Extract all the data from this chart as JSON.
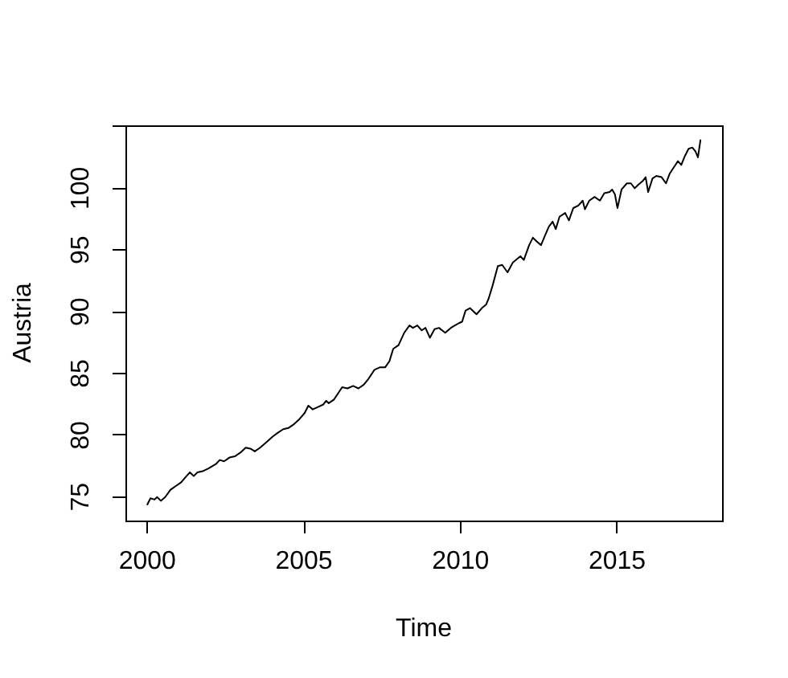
{
  "chart_data": {
    "type": "line",
    "xlabel": "Time",
    "ylabel": "Austria",
    "color": "#000000",
    "x": [
      2000.0,
      2000.1,
      2000.23,
      2000.31,
      2000.43,
      2000.57,
      2000.74,
      2000.91,
      2001.08,
      2001.25,
      2001.36,
      2001.48,
      2001.6,
      2001.77,
      2001.94,
      2002.2,
      2002.31,
      2002.45,
      2002.62,
      2002.8,
      2002.97,
      2003.14,
      2003.31,
      2003.43,
      2003.6,
      2003.83,
      2004.0,
      2004.16,
      2004.34,
      2004.51,
      2004.68,
      2004.85,
      2005.02,
      2005.14,
      2005.28,
      2005.45,
      2005.62,
      2005.71,
      2005.79,
      2005.96,
      2006.22,
      2006.39,
      2006.57,
      2006.74,
      2006.91,
      2007.04,
      2007.25,
      2007.42,
      2007.59,
      2007.73,
      2007.85,
      2008.02,
      2008.2,
      2008.37,
      2008.48,
      2008.62,
      2008.76,
      2008.88,
      2009.02,
      2009.17,
      2009.31,
      2009.51,
      2009.69,
      2009.82,
      2009.96,
      2010.05,
      2010.16,
      2010.3,
      2010.51,
      2010.68,
      2010.82,
      2010.9,
      2011.02,
      2011.19,
      2011.33,
      2011.5,
      2011.67,
      2011.91,
      2012.02,
      2012.19,
      2012.31,
      2012.43,
      2012.57,
      2012.7,
      2012.82,
      2012.94,
      2013.04,
      2013.16,
      2013.34,
      2013.46,
      2013.6,
      2013.76,
      2013.9,
      2013.97,
      2014.11,
      2014.28,
      2014.45,
      2014.59,
      2014.76,
      2014.84,
      2014.93,
      2015.01,
      2015.14,
      2015.31,
      2015.44,
      2015.56,
      2015.68,
      2015.82,
      2015.91,
      2015.99,
      2016.13,
      2016.25,
      2016.42,
      2016.56,
      2016.68,
      2016.81,
      2016.94,
      2017.05,
      2017.16,
      2017.28,
      2017.4,
      2017.5,
      2017.58,
      2017.66
    ],
    "values": [
      74.4,
      74.9,
      74.8,
      75.0,
      74.7,
      75.0,
      75.6,
      75.9,
      76.2,
      76.7,
      77.0,
      76.7,
      77.0,
      77.1,
      77.3,
      77.7,
      78.0,
      77.9,
      78.2,
      78.3,
      78.6,
      79.0,
      78.9,
      78.7,
      79.0,
      79.5,
      79.9,
      80.2,
      80.5,
      80.6,
      80.9,
      81.3,
      81.8,
      82.4,
      82.1,
      82.3,
      82.5,
      82.8,
      82.6,
      82.9,
      83.9,
      83.8,
      84.0,
      83.8,
      84.1,
      84.5,
      85.3,
      85.5,
      85.5,
      86.0,
      87.0,
      87.3,
      88.3,
      88.9,
      88.7,
      88.9,
      88.5,
      88.7,
      87.9,
      88.6,
      88.7,
      88.3,
      88.7,
      88.9,
      89.1,
      89.2,
      90.1,
      90.3,
      89.8,
      90.3,
      90.6,
      91.1,
      92.1,
      93.7,
      93.8,
      93.2,
      94.0,
      94.5,
      94.2,
      95.4,
      96.0,
      95.7,
      95.4,
      96.2,
      96.9,
      97.3,
      96.7,
      97.7,
      98.0,
      97.4,
      98.4,
      98.6,
      99.0,
      98.3,
      99.0,
      99.3,
      99.0,
      99.6,
      99.7,
      99.9,
      99.5,
      98.4,
      99.9,
      100.4,
      100.4,
      100.0,
      100.3,
      100.6,
      100.9,
      99.7,
      100.8,
      101.0,
      100.9,
      100.4,
      101.2,
      101.7,
      102.2,
      101.9,
      102.6,
      103.2,
      103.3,
      103.0,
      102.5,
      103.9
    ],
    "xlim": [
      1999.3,
      2018.35
    ],
    "ylim": [
      73.1,
      105.1
    ],
    "xticks": [
      2000,
      2005,
      2010,
      2015
    ],
    "yticks": [
      75,
      80,
      85,
      90,
      95,
      100,
      {
        "value": 105,
        "label": null
      }
    ],
    "grid": false,
    "legend": false,
    "marker": "none",
    "line_style": "solid"
  }
}
